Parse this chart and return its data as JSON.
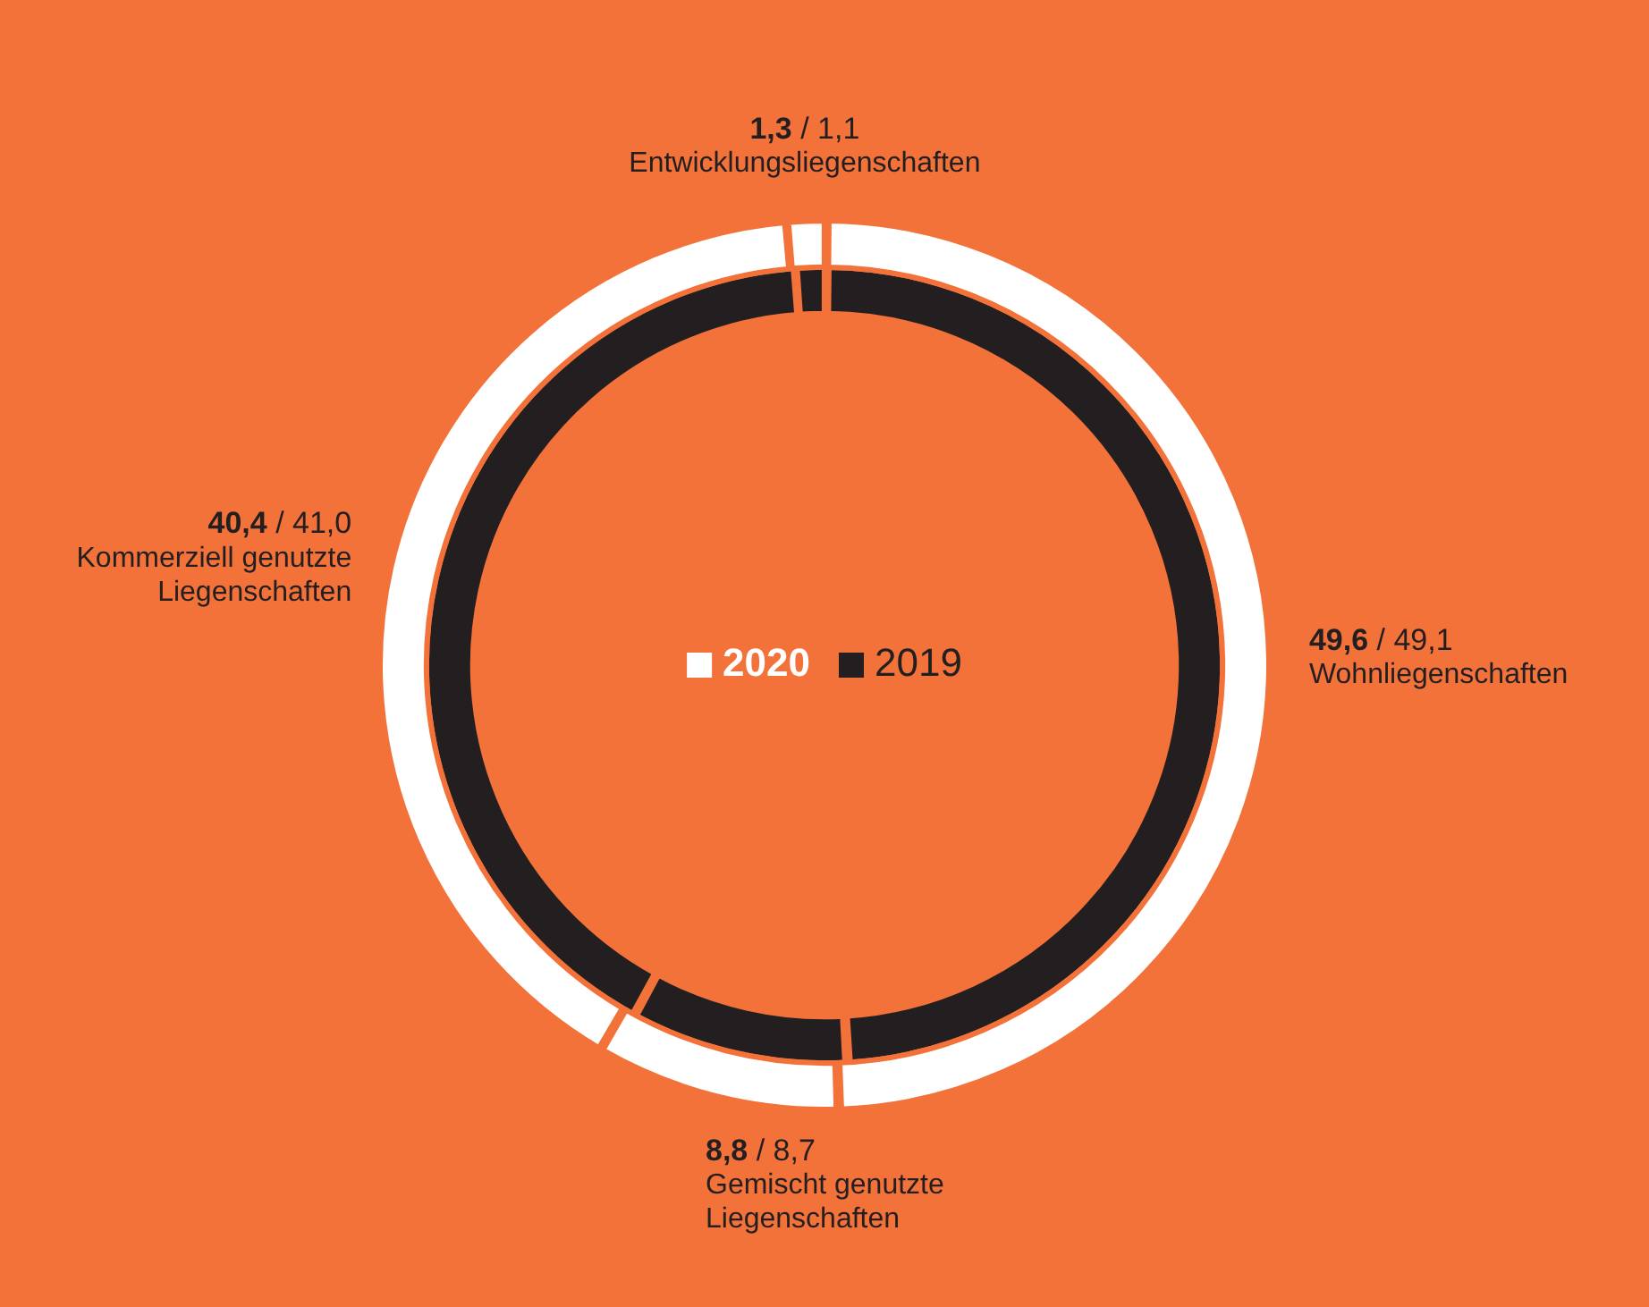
{
  "chart_data": {
    "type": "donut",
    "legend": "center",
    "categories": [
      "Wohnliegenschaften",
      "Gemischt genutzte Liegenschaften",
      "Kommerziell genutzte Liegenschaften",
      "Entwicklungsliegenschaften"
    ],
    "series": [
      {
        "name": "2019",
        "color": "#231f20",
        "values": [
          49.1,
          8.7,
          41.0,
          1.1
        ],
        "value_labels": [
          "/ 49,1",
          "/ 8,7",
          "/ 41,0",
          "/ 1,1"
        ]
      },
      {
        "name": "2020",
        "color": "#ffffff",
        "values": [
          49.6,
          8.8,
          40.4,
          1.3
        ],
        "value_labels": [
          "49,6",
          "8,8",
          "40,4",
          "1,3"
        ]
      }
    ]
  }
}
